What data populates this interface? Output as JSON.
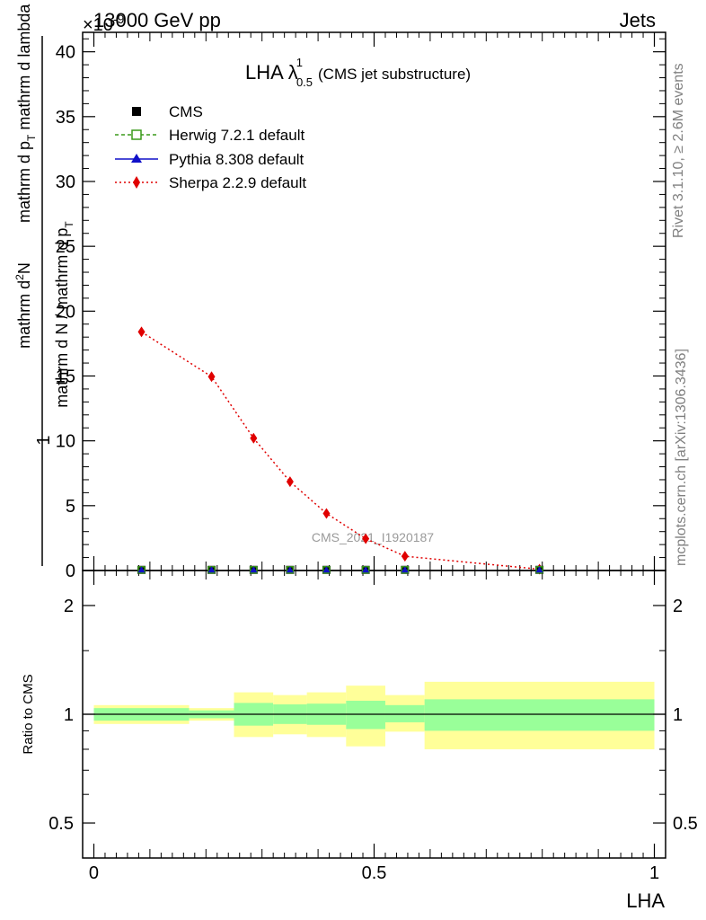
{
  "header": {
    "left": "13000 GeV pp",
    "right": "Jets",
    "exponent_base": "×10",
    "exponent_power": "-9"
  },
  "plot_title": {
    "main": "LHA λ",
    "sup": "1",
    "sub": "0.5",
    "suffix": "(CMS jet substructure)"
  },
  "side_labels": {
    "rivet": "Rivet 3.1.10, ≥ 2.6M events",
    "mcplots": "mcplots.cern.ch [arXiv:1306.3436]"
  },
  "watermark": "CMS_2021_I1920187",
  "ylabel_main": {
    "numerator_top": "mathrm d",
    "numerator_sup": "2",
    "numerator_N": "N",
    "numerator_bottom": "mathrm d p",
    "numerator_bottom_sub": "T",
    "numerator_bottom_rest": " mathrm d lambda",
    "one": "1",
    "denominator": "mathrm d N / mathrm d p",
    "denominator_sub": "T"
  },
  "ylabel_ratio": "Ratio to CMS",
  "xlabel": "LHA",
  "colors": {
    "herwig": "#3a9a1a",
    "pythia": "#1010c8",
    "sherpa": "#e00000",
    "band_inner": "#99ff99",
    "band_outer": "#ffff99"
  },
  "chart_data": [
    {
      "type": "line",
      "xlim": [
        -0.02,
        1.02
      ],
      "ylim": [
        0,
        41.5
      ],
      "y_scale_factor": "1e-9",
      "yticks": [
        0,
        5,
        10,
        15,
        20,
        25,
        30,
        35,
        40
      ],
      "ytick_labels": [
        "0",
        "5",
        "10",
        "15",
        "20",
        "25",
        "30",
        "35",
        "40"
      ],
      "legend": {
        "placement": "top-left",
        "entries": [
          "CMS",
          "Herwig 7.2.1 default",
          "Pythia 8.308 default",
          "Sherpa 2.2.9 default"
        ]
      },
      "series": [
        {
          "name": "CMS",
          "style": "square-marker",
          "x": [
            0.085,
            0.21,
            0.285,
            0.35,
            0.415,
            0.485,
            0.555,
            0.795
          ],
          "y": [
            0.05,
            0.05,
            0.05,
            0.05,
            0.05,
            0.05,
            0.05,
            0.05
          ]
        },
        {
          "name": "Herwig 7.2.1 default",
          "style": "dashed-open-square",
          "x": [
            0.085,
            0.21,
            0.285,
            0.35,
            0.415,
            0.485,
            0.555,
            0.795
          ],
          "y": [
            0.05,
            0.05,
            0.05,
            0.05,
            0.05,
            0.05,
            0.05,
            0.05
          ]
        },
        {
          "name": "Pythia 8.308 default",
          "style": "solid-triangle",
          "x": [
            0.085,
            0.21,
            0.285,
            0.35,
            0.415,
            0.485,
            0.555,
            0.795
          ],
          "y": [
            0.05,
            0.05,
            0.05,
            0.05,
            0.05,
            0.05,
            0.05,
            0.05
          ]
        },
        {
          "name": "Sherpa 2.2.9 default",
          "style": "dotted-diamond",
          "x": [
            0.085,
            0.21,
            0.285,
            0.35,
            0.415,
            0.485,
            0.555,
            0.795
          ],
          "y": [
            18.4,
            14.95,
            10.2,
            6.85,
            4.4,
            2.45,
            1.1,
            0.1
          ]
        }
      ]
    },
    {
      "type": "area",
      "xlim": [
        -0.02,
        1.02
      ],
      "ylim": [
        0.4,
        2.5
      ],
      "log_y": true,
      "yticks": [
        0.5,
        1,
        2
      ],
      "ytick_labels": [
        "0.5",
        "1",
        "2"
      ],
      "xticks": [
        0,
        0.5,
        1
      ],
      "xtick_labels": [
        "0",
        "0.5",
        "1"
      ],
      "reference_line": 1,
      "bands": {
        "edges": [
          0.0,
          0.17,
          0.25,
          0.32,
          0.38,
          0.45,
          0.52,
          0.59,
          1.0
        ],
        "inner_lo": [
          0.96,
          0.975,
          0.93,
          0.94,
          0.935,
          0.91,
          0.95,
          0.9
        ],
        "inner_hi": [
          1.04,
          1.025,
          1.075,
          1.065,
          1.07,
          1.09,
          1.06,
          1.1
        ],
        "outer_lo": [
          0.94,
          0.96,
          0.865,
          0.88,
          0.865,
          0.815,
          0.895,
          0.8
        ],
        "outer_hi": [
          1.06,
          1.04,
          1.15,
          1.13,
          1.15,
          1.2,
          1.13,
          1.23
        ]
      }
    }
  ]
}
